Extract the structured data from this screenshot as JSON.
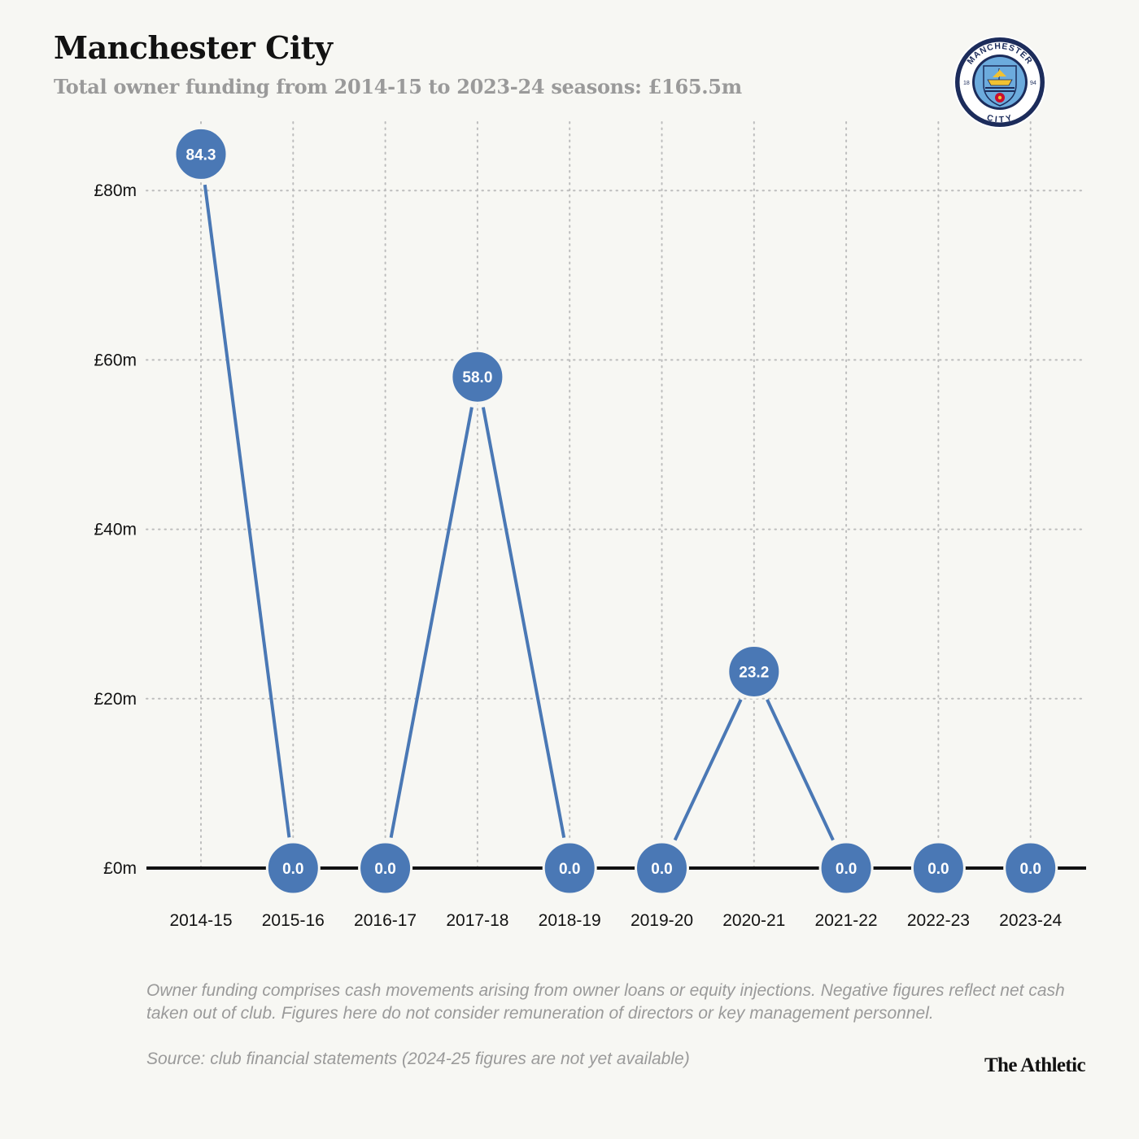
{
  "header": {
    "title": "Manchester City",
    "subtitle": "Total owner funding from 2014-15 to 2023-24 seasons: £165.5m"
  },
  "crest": {
    "top_text": "MANCHESTER",
    "bottom_text": "CITY",
    "year_left": "18",
    "year_right": "94"
  },
  "colors": {
    "accent": "#4a78b5",
    "background": "#f7f7f3",
    "text": "#121212",
    "muted": "#9a9a9a",
    "crest_navy": "#1c2c5b",
    "crest_sky": "#6cabdd"
  },
  "chart_data": {
    "type": "line",
    "title": "Manchester City",
    "subtitle": "Total owner funding from 2014-15 to 2023-24 seasons: £165.5m",
    "xlabel": "",
    "ylabel": "",
    "categories": [
      "2014-15",
      "2015-16",
      "2016-17",
      "2017-18",
      "2018-19",
      "2019-20",
      "2020-21",
      "2021-22",
      "2022-23",
      "2023-24"
    ],
    "values": [
      84.3,
      0.0,
      0.0,
      58.0,
      0.0,
      0.0,
      23.2,
      0.0,
      0.0,
      0.0
    ],
    "data_labels": [
      "84.3",
      "0.0",
      "0.0",
      "58.0",
      "0.0",
      "0.0",
      "23.2",
      "0.0",
      "0.0",
      "0.0"
    ],
    "yticks": [
      0,
      20,
      40,
      60,
      80
    ],
    "ytick_labels": [
      "£0m",
      "£20m",
      "£40m",
      "£60m",
      "£80m"
    ],
    "ylim": [
      0,
      84.3
    ],
    "grid": true
  },
  "footer": {
    "note": "Owner funding comprises cash movements arising from owner loans or equity injections. Negative figures reflect net cash taken out of club. Figures here do not consider remuneration of directors or key management personnel.",
    "source": "Source: club financial statements (2024-25 figures are not yet available)",
    "brand": "The Athletic"
  }
}
